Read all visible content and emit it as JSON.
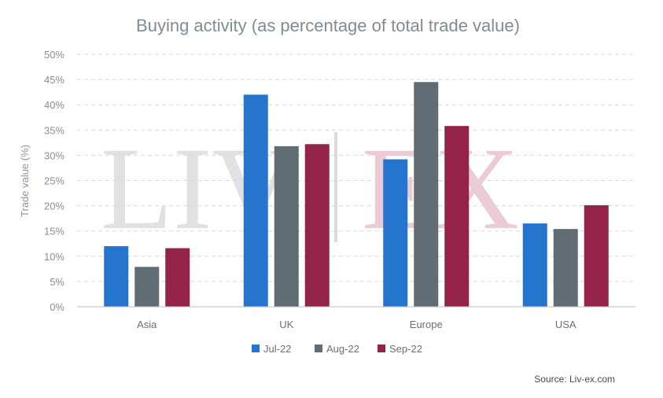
{
  "chart_data": {
    "type": "bar",
    "title": "Buying activity (as percentage of total trade value)",
    "ylabel": "Trade value (%)",
    "xlabel": "",
    "ylim": [
      0,
      50
    ],
    "yticks": [
      "0%",
      "5%",
      "10%",
      "15%",
      "20%",
      "25%",
      "30%",
      "35%",
      "40%",
      "45%",
      "50%"
    ],
    "grid": true,
    "legend_position": "bottom",
    "categories": [
      "Asia",
      "UK",
      "Europe",
      "USA"
    ],
    "series": [
      {
        "name": "Jul-22",
        "color": "#2575cf",
        "values": [
          12,
          42,
          29.2,
          16.5
        ]
      },
      {
        "name": "Aug-22",
        "color": "#616d74",
        "values": [
          7.9,
          31.8,
          44.5,
          15.4
        ]
      },
      {
        "name": "Sep-22",
        "color": "#932349",
        "values": [
          11.6,
          32.2,
          35.8,
          20.1
        ]
      }
    ],
    "watermark": "LIV-EX",
    "source": "Source: Liv-ex.com"
  }
}
